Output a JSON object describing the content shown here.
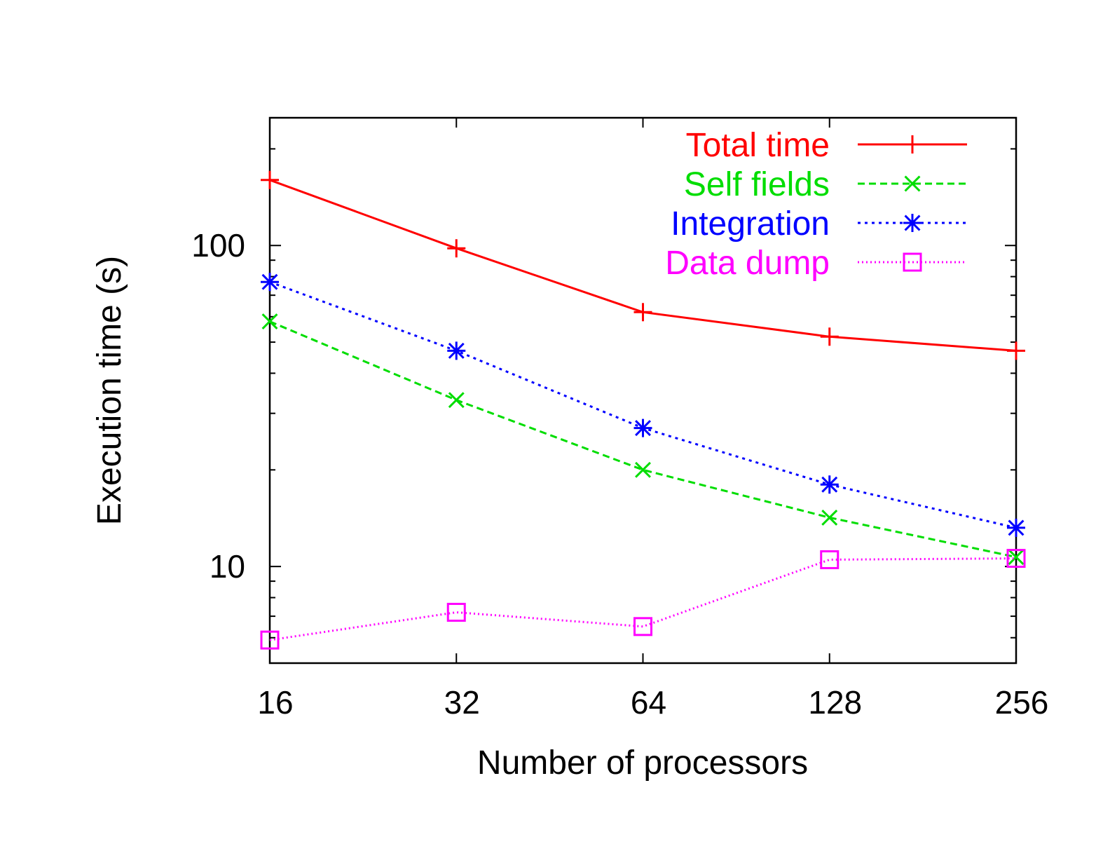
{
  "chart_data": {
    "type": "line",
    "xlabel": "Number of processors",
    "ylabel": "Execution time (s)",
    "x": [
      16,
      32,
      64,
      128,
      256
    ],
    "x_scale": "log2",
    "y_scale": "log10",
    "xlim": [
      16,
      256
    ],
    "ylim": [
      5,
      250
    ],
    "xticks": [
      "16",
      "32",
      "64",
      "128",
      "256"
    ],
    "yticks": [
      {
        "value": 10,
        "label": "10"
      },
      {
        "value": 100,
        "label": "100"
      }
    ],
    "grid": false,
    "legend_position": "top-right",
    "series": [
      {
        "name": "Total time",
        "color": "#ff0000",
        "marker": "plus",
        "dash": "solid",
        "values": [
          160,
          98,
          62,
          52,
          47
        ]
      },
      {
        "name": "Self fields",
        "color": "#00dd00",
        "marker": "cross",
        "dash": "dashed",
        "values": [
          58,
          33,
          20,
          14.2,
          10.7
        ]
      },
      {
        "name": "Integration",
        "color": "#0000ff",
        "marker": "star",
        "dash": "dotted",
        "values": [
          77,
          47,
          27,
          18,
          13.2
        ]
      },
      {
        "name": "Data dump",
        "color": "#ff00ff",
        "marker": "square",
        "dash": "fine-dotted",
        "values": [
          5.9,
          7.2,
          6.5,
          10.5,
          10.6
        ]
      }
    ]
  }
}
